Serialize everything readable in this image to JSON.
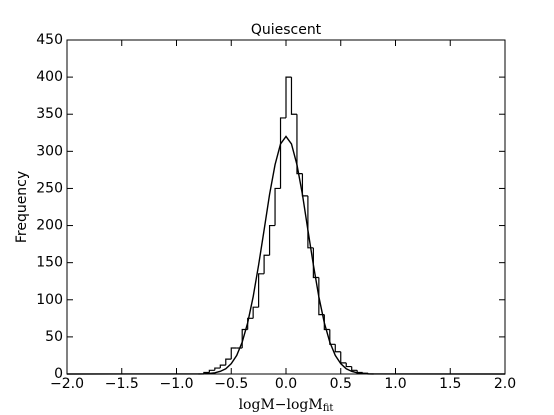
{
  "chart_data": {
    "type": "histogram",
    "title": "Quiescent",
    "xlabel": {
      "main": "logM−logM",
      "sub": "fit"
    },
    "ylabel": "Frequency",
    "bins": [
      -0.8,
      -0.75,
      -0.7,
      -0.65,
      -0.6,
      -0.55,
      -0.5,
      -0.45,
      -0.4,
      -0.35,
      -0.3,
      -0.25,
      -0.2,
      -0.15,
      -0.1,
      -0.05,
      0,
      0.05,
      0.1,
      0.15,
      0.2,
      0.25,
      0.3,
      0.35,
      0.4,
      0.45,
      0.5,
      0.55,
      0.6,
      0.65,
      0.7,
      0.75,
      0.8
    ],
    "values": [
      0,
      2,
      5,
      8,
      12,
      20,
      35,
      35,
      60,
      75,
      90,
      135,
      160,
      200,
      250,
      345,
      400,
      350,
      270,
      240,
      170,
      130,
      80,
      60,
      40,
      30,
      15,
      10,
      5,
      2,
      1,
      0
    ],
    "color": "#000000",
    "fit": {
      "color": "#000000",
      "x": [
        -2,
        -0.8,
        -0.75,
        -0.7,
        -0.65,
        -0.6,
        -0.55,
        -0.5,
        -0.45,
        -0.4,
        -0.35,
        -0.3,
        -0.25,
        -0.2,
        -0.15,
        -0.1,
        -0.05,
        0,
        0.05,
        0.1,
        0.15,
        0.2,
        0.25,
        0.3,
        0.35,
        0.4,
        0.45,
        0.5,
        0.55,
        0.6,
        0.65,
        0.7,
        0.75,
        0.8,
        2
      ],
      "y": [
        0,
        0.1,
        0.3,
        0.7,
        1.6,
        3.6,
        7,
        14,
        25,
        43,
        69,
        104,
        147,
        194,
        242,
        282,
        310,
        320,
        310,
        282,
        242,
        194,
        147,
        104,
        69,
        43,
        25,
        14,
        7,
        3.6,
        1.6,
        0.7,
        0.3,
        0.1,
        0
      ]
    },
    "xlim": [
      -2,
      2
    ],
    "xticks": [
      {
        "value": -2,
        "label": "−2.0"
      },
      {
        "value": -1.5,
        "label": "−1.5"
      },
      {
        "value": -1,
        "label": "−1.0"
      },
      {
        "value": -0.5,
        "label": "−0.5"
      },
      {
        "value": 0,
        "label": "0.0"
      },
      {
        "value": 0.5,
        "label": "0.5"
      },
      {
        "value": 1,
        "label": "1.0"
      },
      {
        "value": 1.5,
        "label": "1.5"
      },
      {
        "value": 2,
        "label": "2.0"
      }
    ],
    "ylim": [
      0,
      450
    ],
    "yticks": [
      0,
      50,
      100,
      150,
      200,
      250,
      300,
      350,
      400,
      450
    ],
    "grid": false
  }
}
